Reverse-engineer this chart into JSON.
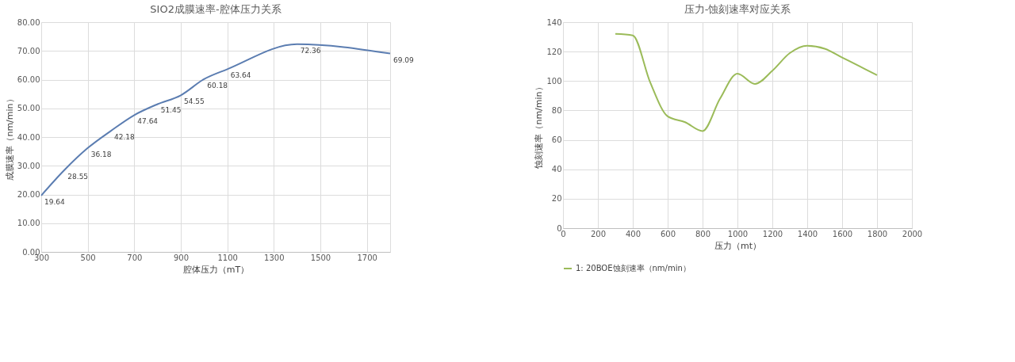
{
  "chart_data": [
    {
      "type": "line",
      "title": "SIO2成膜速率-腔体压力关系",
      "xlabel": "腔体压力（mT）",
      "ylabel": "成膜速率（nm/min）",
      "x": [
        300,
        400,
        500,
        600,
        700,
        800,
        900,
        1000,
        1100,
        1400,
        1800
      ],
      "series": [
        {
          "color": "#5b7db1",
          "values": [
            19.64,
            28.55,
            36.18,
            42.18,
            47.64,
            51.45,
            54.55,
            60.18,
            63.64,
            72.36,
            69.09
          ]
        }
      ],
      "data_labels": true,
      "legend": false,
      "grid": true,
      "marker": "none",
      "line_style": "solid",
      "xlim": [
        300,
        1800
      ],
      "xticks": [
        300,
        500,
        700,
        900,
        1100,
        1300,
        1500,
        1700
      ],
      "ylim": [
        0,
        80
      ],
      "yticks": [
        {
          "value": 0,
          "label": "0.00"
        },
        {
          "value": 10,
          "label": "10.00"
        },
        {
          "value": 20,
          "label": "20.00"
        },
        {
          "value": 30,
          "label": "30.00"
        },
        {
          "value": 40,
          "label": "40.00"
        },
        {
          "value": 50,
          "label": "50.00"
        },
        {
          "value": 60,
          "label": "60.00"
        },
        {
          "value": 70,
          "label": "70.00"
        },
        {
          "value": 80,
          "label": "80.00"
        }
      ]
    },
    {
      "type": "line",
      "title": "压力-蚀刻速率对应关系",
      "xlabel": "压力（mt）",
      "ylabel": "蚀刻速率（nm/min）",
      "x": [
        300,
        400,
        500,
        600,
        700,
        800,
        900,
        1000,
        1100,
        1200,
        1300,
        1400,
        1500,
        1600,
        1700,
        1800
      ],
      "series": [
        {
          "name": "1: 20BOE蚀刻速率（nm/min）",
          "color": "#9bbb59",
          "values": [
            132,
            131,
            99,
            76,
            72,
            66,
            88,
            105,
            98,
            107,
            119,
            124,
            122,
            116,
            110,
            104
          ]
        }
      ],
      "legend": "bottom",
      "grid": true,
      "marker": "none",
      "line_style": "solid",
      "xlim": [
        0,
        2000
      ],
      "xticks": [
        0,
        200,
        400,
        600,
        800,
        1000,
        1200,
        1400,
        1600,
        1800,
        2000
      ],
      "ylim": [
        0,
        140
      ],
      "yticks": [
        0,
        20,
        40,
        60,
        80,
        100,
        120,
        140
      ]
    }
  ]
}
